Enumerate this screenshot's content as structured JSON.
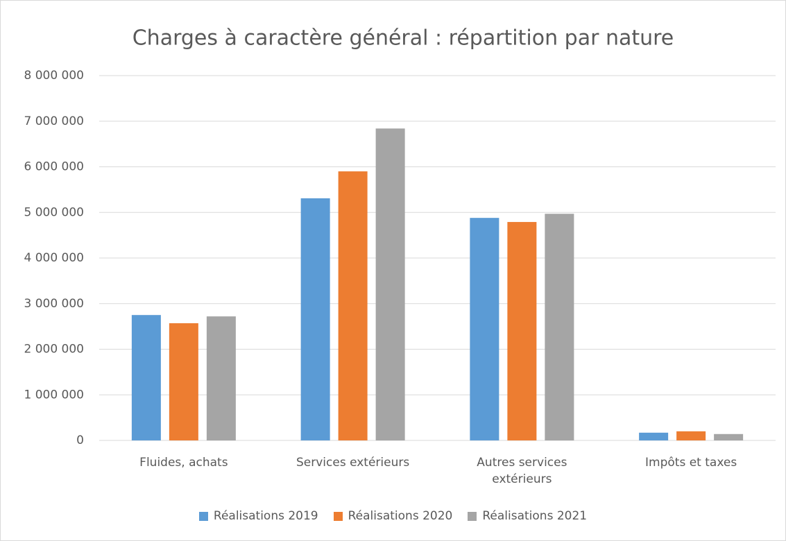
{
  "chart_data": {
    "type": "bar",
    "title": "Charges à caractère général : répartition par nature",
    "categories": [
      "Fluides, achats",
      "Services extérieurs",
      "Autres services extérieurs",
      "Impôts et taxes"
    ],
    "series": [
      {
        "name": "Réalisations 2019",
        "color": "#5b9bd5",
        "values": [
          2750000,
          5310000,
          4880000,
          170000
        ]
      },
      {
        "name": "Réalisations 2020",
        "color": "#ed7d31",
        "values": [
          2570000,
          5900000,
          4790000,
          200000
        ]
      },
      {
        "name": "Réalisations 2021",
        "color": "#a5a5a5",
        "values": [
          2720000,
          6840000,
          4970000,
          140000
        ]
      }
    ],
    "ylim": [
      0,
      8000000
    ],
    "yticks": [
      0,
      {
        "value": 1000000,
        "label": "1 000 000"
      },
      {
        "value": 2000000,
        "label": "2 000 000"
      },
      {
        "value": 3000000,
        "label": "3 000 000"
      },
      {
        "value": 4000000,
        "label": "4 000 000"
      },
      {
        "value": 5000000,
        "label": "5 000 000"
      },
      {
        "value": 6000000,
        "label": "6 000 000"
      },
      {
        "value": 7000000,
        "label": "7 000 000"
      },
      {
        "value": 8000000,
        "label": "8 000 000"
      }
    ],
    "grid": true,
    "legend": "bottom"
  }
}
